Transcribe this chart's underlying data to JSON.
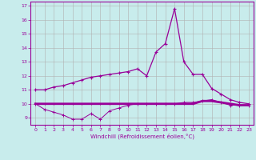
{
  "xlabel": "Windchill (Refroidissement éolien,°C)",
  "background_color": "#c8ecec",
  "grid_color": "#b0b0b0",
  "line_color": "#990099",
  "xlim": [
    -0.5,
    23.5
  ],
  "ylim": [
    8.5,
    17.3
  ],
  "yticks": [
    9,
    10,
    11,
    12,
    13,
    14,
    15,
    16,
    17
  ],
  "xticks": [
    0,
    1,
    2,
    3,
    4,
    5,
    6,
    7,
    8,
    9,
    10,
    11,
    12,
    13,
    14,
    15,
    16,
    17,
    18,
    19,
    20,
    21,
    22,
    23
  ],
  "hours": [
    0,
    1,
    2,
    3,
    4,
    5,
    6,
    7,
    8,
    9,
    10,
    11,
    12,
    13,
    14,
    15,
    16,
    17,
    18,
    19,
    20,
    21,
    22,
    23
  ],
  "line1": [
    11.0,
    11.0,
    11.2,
    11.3,
    11.5,
    11.7,
    11.9,
    12.0,
    12.1,
    12.2,
    12.3,
    12.5,
    12.0,
    13.7,
    14.3,
    16.8,
    13.0,
    12.1,
    12.1,
    11.1,
    10.7,
    10.3,
    10.1,
    10.0
  ],
  "line2": [
    10.0,
    10.0,
    10.0,
    10.0,
    10.0,
    10.0,
    10.0,
    10.0,
    10.0,
    10.0,
    10.0,
    10.0,
    10.0,
    10.0,
    10.0,
    10.0,
    10.0,
    10.0,
    10.2,
    10.2,
    10.1,
    10.0,
    9.9,
    9.9
  ],
  "line3": [
    10.0,
    9.6,
    9.4,
    9.2,
    8.9,
    8.9,
    9.3,
    8.9,
    9.5,
    9.7,
    9.9,
    10.0,
    10.0,
    10.0,
    10.0,
    10.0,
    10.1,
    10.1,
    10.2,
    10.3,
    10.1,
    9.9,
    9.9,
    9.9
  ]
}
